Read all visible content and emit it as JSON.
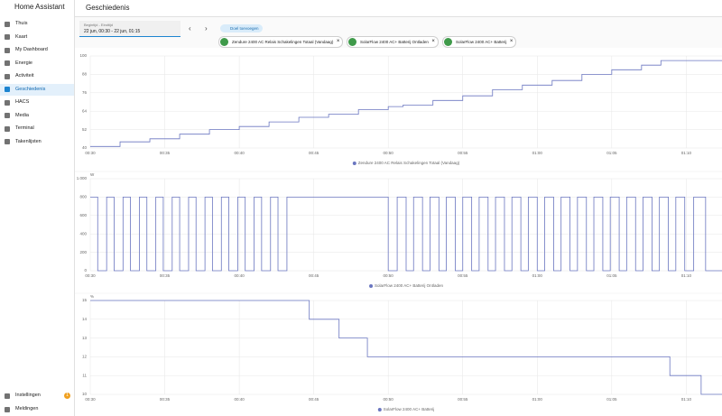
{
  "sidebar": {
    "title": "Home Assistant",
    "items": [
      "Thuis",
      "Kaart",
      "My Dashboard",
      "Energie",
      "Activiteit",
      "Geschiedenis",
      "HACS",
      "Media",
      "Terminal",
      "Takenlijsten"
    ],
    "selected": 5,
    "footer": [
      {
        "label": "Instellingen",
        "badge": "1"
      },
      {
        "label": "Meldingen"
      }
    ]
  },
  "header": {
    "title": "Geschiedenis"
  },
  "picker": {
    "label": "Begintijd - Eindtijd",
    "value": "22 jun, 00:30 - 22 jun, 01:15",
    "add_target": "Doel toevoegen",
    "chips": [
      "Zendure 2400 AC Relais Schakelingen Totaal (Vandaag)",
      "SolarFlow 2400 AC+ Batterij Ontladen",
      "SolarFlow 2400 AC+ Batterij"
    ]
  },
  "chart_data": [
    {
      "type": "line",
      "step": true,
      "color": "#6a76c0",
      "grid": true,
      "series": [
        {
          "name": "Zendure 2400 AC Relais Schakelingen Totaal (Vandaag)",
          "x": [
            0,
            2,
            4,
            6,
            8,
            10,
            12,
            14,
            16,
            18,
            20,
            21,
            23,
            25,
            27,
            29,
            31,
            33,
            35,
            37,
            38.3,
            42.4
          ],
          "values": [
            41,
            44,
            46,
            49,
            52,
            54,
            57,
            60,
            62,
            65,
            67,
            68,
            71,
            74,
            78,
            81,
            84,
            88,
            91,
            94,
            97,
            97
          ]
        }
      ],
      "xlim": [
        0,
        42.4
      ],
      "xticks": [
        {
          "value": 0,
          "label": "00:30"
        },
        {
          "value": 5,
          "label": "00:35"
        },
        {
          "value": 10,
          "label": "00:40"
        },
        {
          "value": 15,
          "label": "00:45"
        },
        {
          "value": 20,
          "label": "00:50"
        },
        {
          "value": 25,
          "label": "00:55"
        },
        {
          "value": 30,
          "label": "01:00"
        },
        {
          "value": 35,
          "label": "01:05"
        },
        {
          "value": 40,
          "label": "01:10"
        }
      ],
      "ylim": [
        40,
        100
      ],
      "yticks": [
        40,
        52,
        64,
        76,
        88,
        100
      ]
    },
    {
      "type": "line",
      "step": true,
      "color": "#6a76c0",
      "grid": true,
      "unit": "W",
      "series": [
        {
          "name": "SolarFlow 2400 AC+ Batterij Ontladen",
          "x": [
            0,
            0.5,
            1.1,
            1.6,
            2.2,
            2.7,
            3.3,
            3.8,
            4.4,
            4.9,
            5.5,
            6.0,
            6.6,
            7.1,
            7.7,
            8.2,
            8.8,
            9.3,
            9.9,
            10.4,
            11.0,
            11.5,
            12.1,
            12.6,
            13.2,
            20.0,
            20.6,
            21.2,
            21.7,
            22.3,
            22.8,
            23.4,
            23.9,
            24.5,
            25.0,
            25.6,
            26.1,
            26.7,
            27.2,
            27.8,
            28.3,
            28.9,
            29.4,
            30.0,
            30.5,
            31.1,
            31.6,
            32.2,
            32.7,
            33.3,
            33.8,
            34.4,
            34.9,
            35.5,
            36.0,
            36.6,
            37.1,
            37.7,
            38.2,
            38.8,
            39.3,
            39.9,
            40.5,
            41.3,
            42.4
          ],
          "values": [
            800,
            0,
            800,
            0,
            800,
            0,
            800,
            0,
            800,
            0,
            800,
            0,
            800,
            0,
            800,
            0,
            800,
            0,
            800,
            0,
            800,
            0,
            800,
            0,
            800,
            0,
            800,
            0,
            800,
            0,
            800,
            0,
            800,
            0,
            800,
            0,
            800,
            0,
            800,
            0,
            800,
            0,
            800,
            0,
            800,
            0,
            800,
            0,
            800,
            0,
            800,
            0,
            800,
            0,
            800,
            0,
            800,
            0,
            800,
            0,
            800,
            0,
            800,
            0,
            0
          ]
        }
      ],
      "xlim": [
        0,
        42.4
      ],
      "xticks": [
        {
          "value": 0,
          "label": "00:30"
        },
        {
          "value": 5,
          "label": "00:35"
        },
        {
          "value": 10,
          "label": "00:40"
        },
        {
          "value": 15,
          "label": "00:45"
        },
        {
          "value": 20,
          "label": "00:50"
        },
        {
          "value": 25,
          "label": "00:55"
        },
        {
          "value": 30,
          "label": "01:00"
        },
        {
          "value": 35,
          "label": "01:05"
        },
        {
          "value": 40,
          "label": "01:10"
        }
      ],
      "ylim": [
        0,
        1000
      ],
      "yticks": [
        0,
        200,
        400,
        600,
        800,
        {
          "value": 1000,
          "label": "1.000"
        }
      ]
    },
    {
      "type": "line",
      "step": true,
      "color": "#6a76c0",
      "grid": true,
      "unit": "%",
      "series": [
        {
          "name": "SolarFlow 2400 AC+ Batterij",
          "x": [
            0,
            14.7,
            16.7,
            18.6,
            38.9,
            41.0,
            42.4
          ],
          "values": [
            15,
            14,
            13,
            12,
            11,
            10,
            10
          ]
        }
      ],
      "xlim": [
        0,
        42.4
      ],
      "xticks": [
        {
          "value": 0,
          "label": "00:30"
        },
        {
          "value": 5,
          "label": "00:35"
        },
        {
          "value": 10,
          "label": "00:40"
        },
        {
          "value": 15,
          "label": "00:45"
        },
        {
          "value": 20,
          "label": "00:50"
        },
        {
          "value": 25,
          "label": "00:55"
        },
        {
          "value": 30,
          "label": "01:00"
        },
        {
          "value": 35,
          "label": "01:05"
        },
        {
          "value": 40,
          "label": "01:10"
        }
      ],
      "ylim": [
        10,
        15
      ],
      "yticks": [
        10,
        11,
        12,
        13,
        14,
        15
      ]
    }
  ]
}
